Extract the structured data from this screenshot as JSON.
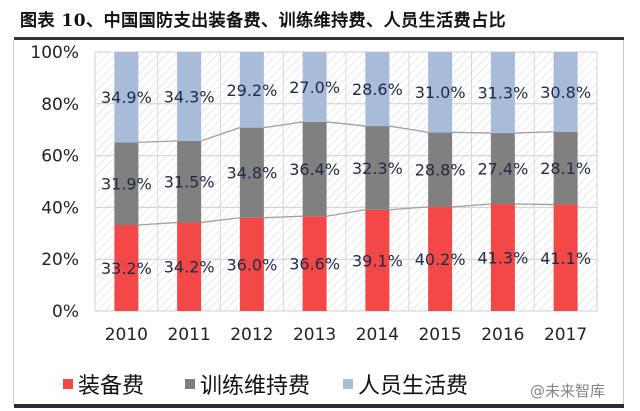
{
  "title": "图表 10、中国国防支出装备费、训练维持费、人员生活费占比",
  "watermark": "@未来智库",
  "chart_data": {
    "type": "bar",
    "stacked": true,
    "percent": true,
    "title": "",
    "xlabel": "",
    "ylabel": "",
    "ylim": [
      0,
      100
    ],
    "yticks": [
      "0%",
      "20%",
      "40%",
      "60%",
      "80%",
      "100%"
    ],
    "categories": [
      "2010",
      "2011",
      "2012",
      "2013",
      "2014",
      "2015",
      "2016",
      "2017"
    ],
    "series": [
      {
        "name": "装备费",
        "color": "#f24848",
        "values": [
          33.2,
          34.2,
          36.0,
          36.6,
          39.1,
          40.2,
          41.3,
          41.1
        ]
      },
      {
        "name": "训练维持费",
        "color": "#808080",
        "values": [
          31.9,
          31.5,
          34.8,
          36.4,
          32.3,
          28.8,
          27.4,
          28.1
        ]
      },
      {
        "name": "人员生活费",
        "color": "#a8bbd8",
        "values": [
          34.9,
          34.3,
          29.2,
          27.0,
          28.6,
          31.0,
          31.3,
          30.8
        ]
      }
    ],
    "grid": true,
    "series_lines": true,
    "legend": "bottom"
  }
}
